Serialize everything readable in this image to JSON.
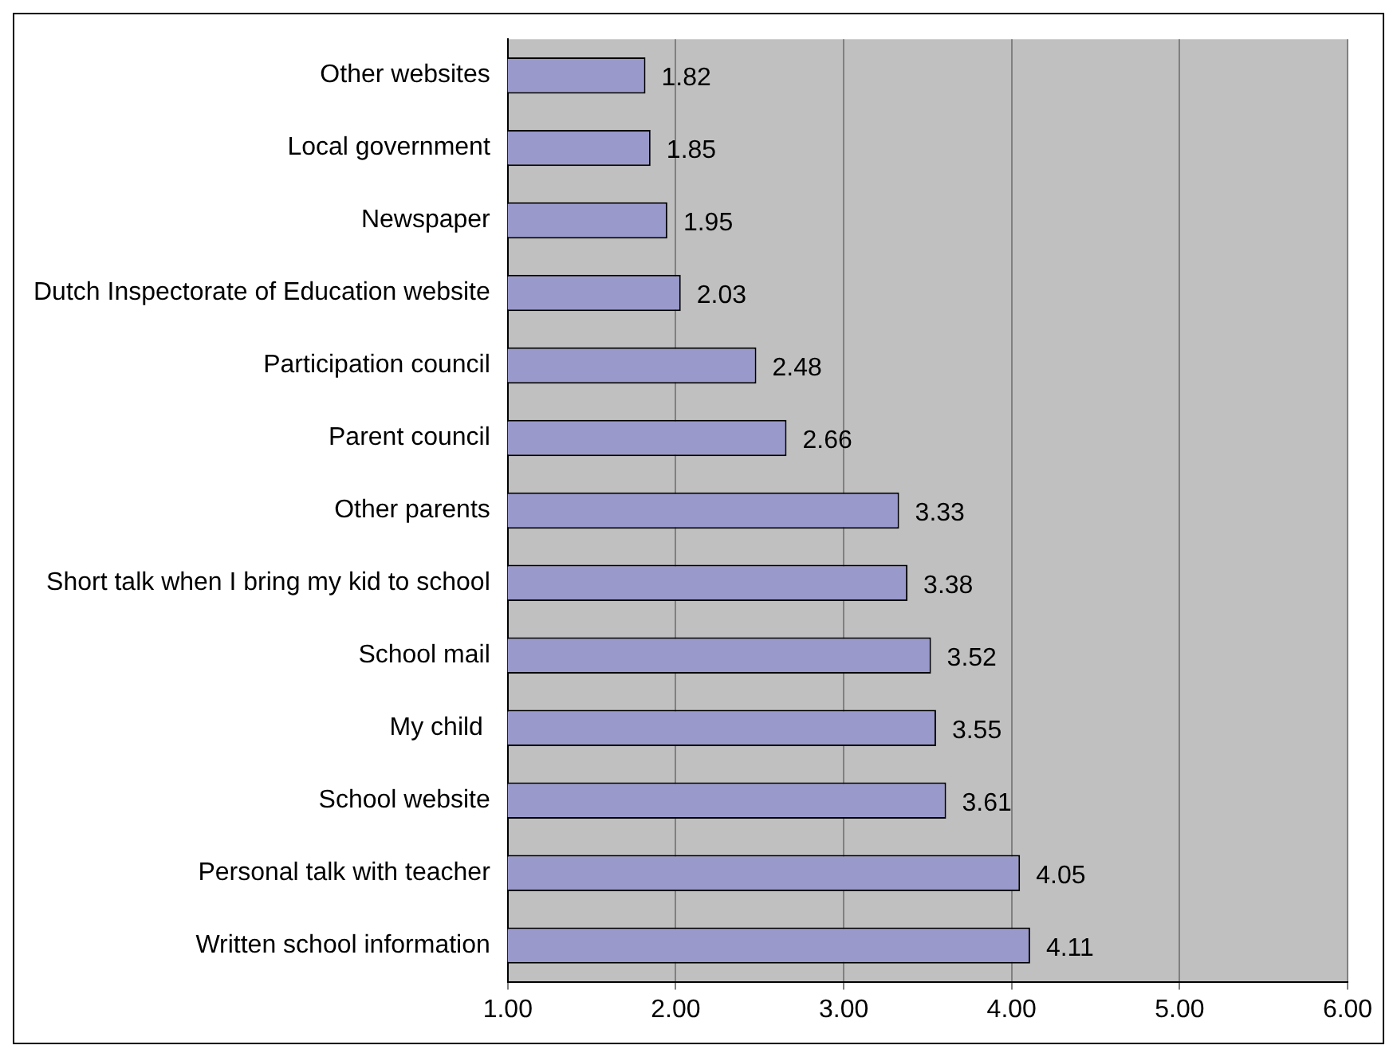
{
  "chart_data": {
    "type": "bar",
    "orientation": "horizontal",
    "categories": [
      "Other websites",
      "Local government",
      "Newspaper",
      "Dutch Inspectorate of Education website",
      "Participation council",
      "Parent council",
      "Other parents",
      "Short talk when I bring my kid to school",
      "School mail",
      "My child ",
      "School website",
      "Personal talk with teacher",
      "Written school information"
    ],
    "values": [
      1.82,
      1.85,
      1.95,
      2.03,
      2.48,
      2.66,
      3.33,
      3.38,
      3.52,
      3.55,
      3.61,
      4.05,
      4.11
    ],
    "value_labels": [
      "1.82",
      "1.85",
      "1.95",
      "2.03",
      "2.48",
      "2.66",
      "3.33",
      "3.38",
      "3.52",
      "3.55",
      "3.61",
      "4.05",
      "4.11"
    ],
    "color": "#9999cc",
    "xlim": [
      1,
      6
    ],
    "xticks": [
      {
        "value": 1,
        "label": "1.00"
      },
      {
        "value": 2,
        "label": "2.00"
      },
      {
        "value": 3,
        "label": "3.00"
      },
      {
        "value": 4,
        "label": "4.00"
      },
      {
        "value": 5,
        "label": "5.00"
      },
      {
        "value": 6,
        "label": "6.00"
      }
    ],
    "grid": "x",
    "legend": false
  }
}
